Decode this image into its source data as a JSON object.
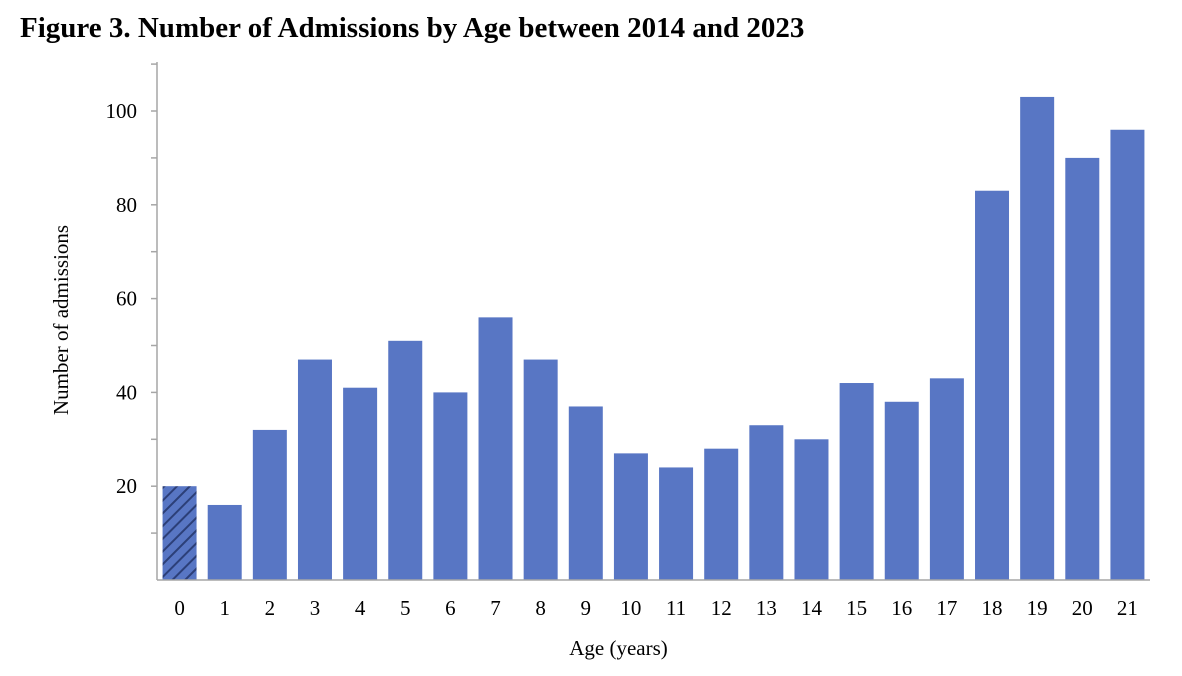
{
  "chart_data": {
    "type": "bar",
    "title": "Figure 3. Number of Admissions by Age between 2014 and 2023",
    "xlabel": "Age (years)",
    "ylabel": "Number of admissions",
    "categories": [
      "0",
      "1",
      "2",
      "3",
      "4",
      "5",
      "6",
      "7",
      "8",
      "9",
      "10",
      "11",
      "12",
      "13",
      "14",
      "15",
      "16",
      "17",
      "18",
      "19",
      "20",
      "21"
    ],
    "values": [
      20,
      16,
      32,
      47,
      41,
      51,
      40,
      56,
      47,
      37,
      27,
      24,
      28,
      33,
      30,
      42,
      38,
      43,
      83,
      103,
      90,
      96
    ],
    "yticks": [
      20,
      40,
      60,
      80,
      100
    ],
    "ylim": [
      0,
      110
    ],
    "grid": false,
    "legend": "none",
    "bar_color": "#5876c4",
    "hatched_categories": [
      "0"
    ]
  }
}
